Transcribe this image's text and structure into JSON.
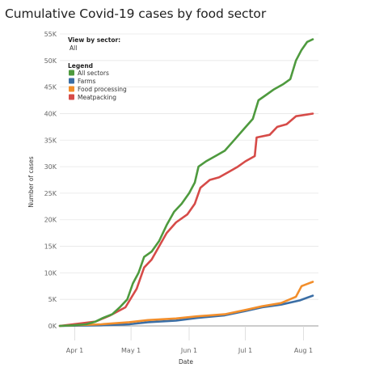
{
  "page": {
    "title": "Cumulative Covid-19 cases by food sector"
  },
  "filter": {
    "label": "View by sector:",
    "value": "All"
  },
  "legend": {
    "title": "Legend",
    "placement": "top-left inside plot"
  },
  "chart_data": {
    "type": "line",
    "title": "Cumulative Covid-19 cases by food sector",
    "xlabel": "Date",
    "ylabel": "Number of cases",
    "ylim": [
      0,
      55000
    ],
    "xlim": [
      "2020-03-24",
      "2020-08-09"
    ],
    "grid": true,
    "yticks": [
      0,
      5000,
      10000,
      15000,
      20000,
      25000,
      30000,
      35000,
      40000,
      45000,
      50000,
      55000
    ],
    "ytick_labels": [
      "0K",
      "5K",
      "10K",
      "15K",
      "20K",
      "25K",
      "30K",
      "35K",
      "40K",
      "45K",
      "50K",
      "55K"
    ],
    "xticks": [
      "2020-04-01",
      "2020-05-01",
      "2020-06-01",
      "2020-07-01",
      "2020-08-01"
    ],
    "xtick_labels": [
      "Apr 1",
      "May 1",
      "Jun 1",
      "Jul 1",
      "Aug 1"
    ],
    "series": [
      {
        "name": "All sectors",
        "color": "#4e9a3e",
        "points": [
          [
            "2020-03-24",
            0
          ],
          [
            "2020-03-31",
            100
          ],
          [
            "2020-04-07",
            300
          ],
          [
            "2020-04-12",
            800
          ],
          [
            "2020-04-16",
            1500
          ],
          [
            "2020-04-21",
            2200
          ],
          [
            "2020-04-25",
            3500
          ],
          [
            "2020-04-29",
            5000
          ],
          [
            "2020-05-02",
            8000
          ],
          [
            "2020-05-05",
            10000
          ],
          [
            "2020-05-08",
            13000
          ],
          [
            "2020-05-12",
            14000
          ],
          [
            "2020-05-16",
            16000
          ],
          [
            "2020-05-20",
            19000
          ],
          [
            "2020-05-24",
            21500
          ],
          [
            "2020-05-28",
            23000
          ],
          [
            "2020-06-01",
            25000
          ],
          [
            "2020-06-04",
            27000
          ],
          [
            "2020-06-06",
            30000
          ],
          [
            "2020-06-10",
            31000
          ],
          [
            "2020-06-15",
            32000
          ],
          [
            "2020-06-20",
            33000
          ],
          [
            "2020-06-25",
            35000
          ],
          [
            "2020-06-30",
            37000
          ],
          [
            "2020-07-05",
            39000
          ],
          [
            "2020-07-08",
            42500
          ],
          [
            "2020-07-12",
            43500
          ],
          [
            "2020-07-16",
            44500
          ],
          [
            "2020-07-21",
            45500
          ],
          [
            "2020-07-25",
            46500
          ],
          [
            "2020-07-28",
            50000
          ],
          [
            "2020-07-31",
            52000
          ],
          [
            "2020-08-03",
            53500
          ],
          [
            "2020-08-06",
            54000
          ]
        ]
      },
      {
        "name": "Farms",
        "color": "#3b6ea5",
        "points": [
          [
            "2020-03-24",
            0
          ],
          [
            "2020-04-15",
            100
          ],
          [
            "2020-04-30",
            300
          ],
          [
            "2020-05-10",
            700
          ],
          [
            "2020-05-25",
            1000
          ],
          [
            "2020-06-05",
            1500
          ],
          [
            "2020-06-20",
            2000
          ],
          [
            "2020-07-01",
            2800
          ],
          [
            "2020-07-10",
            3500
          ],
          [
            "2020-07-20",
            4000
          ],
          [
            "2020-07-30",
            4800
          ],
          [
            "2020-08-06",
            5700
          ]
        ]
      },
      {
        "name": "Food processing",
        "color": "#f28e2b",
        "points": [
          [
            "2020-03-24",
            0
          ],
          [
            "2020-04-15",
            300
          ],
          [
            "2020-04-30",
            700
          ],
          [
            "2020-05-10",
            1100
          ],
          [
            "2020-05-25",
            1400
          ],
          [
            "2020-06-05",
            1800
          ],
          [
            "2020-06-20",
            2200
          ],
          [
            "2020-07-01",
            3000
          ],
          [
            "2020-07-10",
            3700
          ],
          [
            "2020-07-20",
            4300
          ],
          [
            "2020-07-28",
            5500
          ],
          [
            "2020-07-31",
            7500
          ],
          [
            "2020-08-06",
            8300
          ]
        ]
      },
      {
        "name": "Meatpacking",
        "color": "#d64b48",
        "points": [
          [
            "2020-03-24",
            0
          ],
          [
            "2020-04-12",
            800
          ],
          [
            "2020-04-20",
            2000
          ],
          [
            "2020-04-28",
            3500
          ],
          [
            "2020-05-04",
            7000
          ],
          [
            "2020-05-08",
            11000
          ],
          [
            "2020-05-12",
            12500
          ],
          [
            "2020-05-16",
            15000
          ],
          [
            "2020-05-20",
            17500
          ],
          [
            "2020-05-25",
            19500
          ],
          [
            "2020-05-31",
            21000
          ],
          [
            "2020-06-04",
            23000
          ],
          [
            "2020-06-07",
            26000
          ],
          [
            "2020-06-12",
            27500
          ],
          [
            "2020-06-17",
            28000
          ],
          [
            "2020-06-22",
            29000
          ],
          [
            "2020-06-27",
            30000
          ],
          [
            "2020-07-01",
            31000
          ],
          [
            "2020-07-06",
            32000
          ],
          [
            "2020-07-07",
            35500
          ],
          [
            "2020-07-14",
            36000
          ],
          [
            "2020-07-18",
            37500
          ],
          [
            "2020-07-23",
            38000
          ],
          [
            "2020-07-28",
            39500
          ],
          [
            "2020-08-06",
            40000
          ]
        ]
      }
    ]
  }
}
